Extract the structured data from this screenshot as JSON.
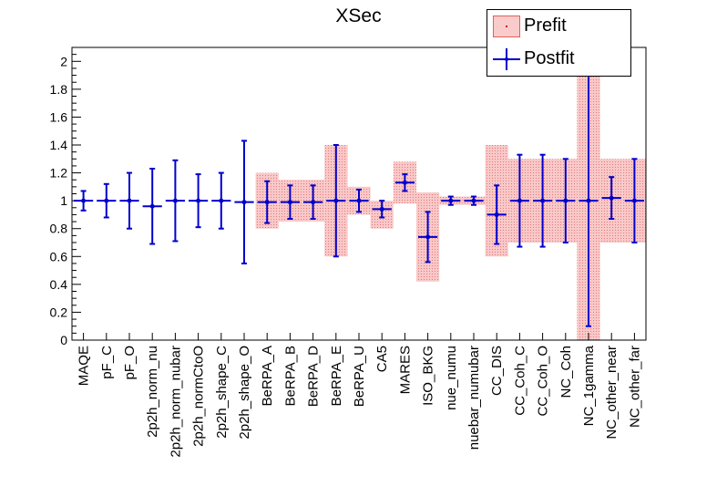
{
  "chart_data": {
    "type": "scatter",
    "title": "XSec",
    "xlabel": "",
    "ylabel": "",
    "ylim": [
      0,
      2.1
    ],
    "yticks": [
      "0",
      "0.2",
      "0.4",
      "0.6",
      "0.8",
      "1",
      "1.2",
      "1.4",
      "1.6",
      "1.8",
      "2"
    ],
    "grid": false,
    "legend_position": "top-right",
    "categories": [
      "MAQE",
      "pF_C",
      "pF_O",
      "2p2h_norm_nu",
      "2p2h_norm_nubar",
      "2p2h_normCtoO",
      "2p2h_shape_C",
      "2p2h_shape_O",
      "BeRPA_A",
      "BeRPA_B",
      "BeRPA_D",
      "BeRPA_E",
      "BeRPA_U",
      "CA5",
      "MARES",
      "ISO_BKG",
      "nue_numu",
      "nuebar_numubar",
      "CC_DIS",
      "CC_Coh_C",
      "CC_Coh_O",
      "NC_Coh",
      "NC_1gamma",
      "NC_other_near",
      "NC_other_far"
    ],
    "series": [
      {
        "name": "Prefit",
        "style": "band",
        "color": "#f4a0a0",
        "values": [
          null,
          null,
          null,
          null,
          null,
          null,
          null,
          null,
          1.0,
          1.0,
          1.0,
          1.0,
          1.0,
          0.9,
          1.13,
          0.74,
          1.0,
          1.0,
          1.0,
          1.0,
          1.0,
          1.0,
          1.0,
          1.0,
          1.0
        ],
        "errors": [
          null,
          null,
          null,
          null,
          null,
          null,
          null,
          null,
          0.2,
          0.15,
          0.15,
          0.4,
          0.1,
          0.1,
          0.15,
          0.32,
          0.03,
          0.03,
          0.4,
          0.3,
          0.3,
          0.3,
          3.0,
          0.3,
          0.3
        ]
      },
      {
        "name": "Postfit",
        "style": "errorbar",
        "color": "#0000cc",
        "values": [
          1.0,
          1.0,
          1.0,
          0.96,
          1.0,
          1.0,
          1.0,
          0.99,
          0.99,
          0.99,
          0.99,
          1.0,
          1.0,
          0.94,
          1.13,
          0.74,
          1.0,
          1.0,
          0.9,
          1.0,
          1.0,
          1.0,
          1.0,
          1.02,
          1.0
        ],
        "errors": [
          0.07,
          0.12,
          0.2,
          0.27,
          0.29,
          0.19,
          0.2,
          0.44,
          0.15,
          0.12,
          0.12,
          0.4,
          0.08,
          0.06,
          0.06,
          0.18,
          0.03,
          0.03,
          0.21,
          0.33,
          0.33,
          0.3,
          0.9,
          0.15,
          0.3
        ]
      }
    ]
  }
}
